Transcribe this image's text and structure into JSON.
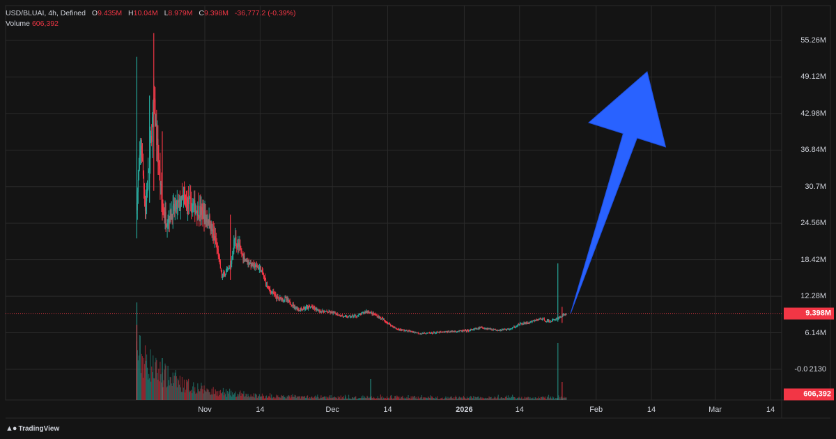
{
  "header": {
    "symbol": "USD/BLUAI, 4h, Defined",
    "open_label": "O",
    "open": "9.435M",
    "high_label": "H",
    "high": "10.04M",
    "low_label": "L",
    "low": "8.979M",
    "close_label": "C",
    "close": "9.398M",
    "change": "-36,777.2 (-0.39%)",
    "volume_label": "Volume",
    "volume": "606,392"
  },
  "branding": {
    "logo_text": "TradingView",
    "logo_icon": "tradingview-logo-icon"
  },
  "price_badge": "9.398M",
  "volume_badge": "606,392",
  "colors": {
    "background": "#141414",
    "grid": "#2a2a2a",
    "up": "#26a69a",
    "down": "#f23645",
    "arrow": "#2962ff"
  },
  "chart_data": {
    "type": "candlestick",
    "title": "USD/BLUAI, 4h, Defined",
    "y_axis": {
      "ticks": [
        "55.26M",
        "49.12M",
        "42.98M",
        "36.84M",
        "30.7M",
        "24.56M",
        "18.42M",
        "12.28M",
        "6.14M",
        "-0.0 2130"
      ],
      "tick_values": [
        55.26,
        49.12,
        42.98,
        36.84,
        30.7,
        24.56,
        18.42,
        12.28,
        6.14,
        0
      ],
      "range": [
        -1.5,
        57.5
      ],
      "scale": "linear",
      "unit": "M"
    },
    "x_axis": {
      "ticks": [
        "Nov",
        "14",
        "Dec",
        "14",
        "2026",
        "14",
        "Feb",
        "14",
        "Mar",
        "14"
      ],
      "tick_dates": [
        "2025-11-01",
        "2025-11-14",
        "2025-12-01",
        "2025-12-14",
        "2026-01-01",
        "2026-01-14",
        "2026-02-01",
        "2026-02-14",
        "2026-03-01",
        "2026-03-14"
      ],
      "range": [
        "2025-10-13",
        "2026-03-15"
      ]
    },
    "current_price": 9.398,
    "last_volume": 606392,
    "series_points": [
      [
        "2025-10-16",
        28.0
      ],
      [
        "2025-10-17",
        38.0
      ],
      [
        "2025-10-18",
        27.0
      ],
      [
        "2025-10-19",
        35.0
      ],
      [
        "2025-10-20",
        45.0
      ],
      [
        "2025-10-21",
        36.0
      ],
      [
        "2025-10-22",
        27.0
      ],
      [
        "2025-10-23",
        25.0
      ],
      [
        "2025-10-25",
        27.0
      ],
      [
        "2025-10-27",
        28.5
      ],
      [
        "2025-10-29",
        27.5
      ],
      [
        "2025-10-31",
        26.5
      ],
      [
        "2025-11-02",
        25.0
      ],
      [
        "2025-11-04",
        20.0
      ],
      [
        "2025-11-05",
        15.5
      ],
      [
        "2025-11-07",
        17.0
      ],
      [
        "2025-11-08",
        22.0
      ],
      [
        "2025-11-10",
        19.0
      ],
      [
        "2025-11-12",
        17.5
      ],
      [
        "2025-11-14",
        17.0
      ],
      [
        "2025-11-16",
        13.5
      ],
      [
        "2025-11-18",
        12.0
      ],
      [
        "2025-11-20",
        11.8
      ],
      [
        "2025-11-23",
        10.0
      ],
      [
        "2025-11-26",
        10.5
      ],
      [
        "2025-11-28",
        9.8
      ],
      [
        "2025-12-01",
        9.5
      ],
      [
        "2025-12-04",
        8.8
      ],
      [
        "2025-12-07",
        9.0
      ],
      [
        "2025-12-09",
        9.8
      ],
      [
        "2025-12-11",
        9.2
      ],
      [
        "2025-12-13",
        8.3
      ],
      [
        "2025-12-16",
        6.8
      ],
      [
        "2025-12-19",
        6.4
      ],
      [
        "2025-12-22",
        6.0
      ],
      [
        "2025-12-26",
        6.2
      ],
      [
        "2025-12-30",
        6.4
      ],
      [
        "2026-01-02",
        6.5
      ],
      [
        "2026-01-05",
        7.0
      ],
      [
        "2026-01-09",
        6.6
      ],
      [
        "2026-01-12",
        6.8
      ],
      [
        "2026-01-14",
        7.6
      ],
      [
        "2026-01-16",
        7.8
      ],
      [
        "2026-01-19",
        8.5
      ],
      [
        "2026-01-21",
        8.0
      ],
      [
        "2026-01-23",
        8.6
      ],
      [
        "2026-01-24",
        9.0
      ],
      [
        "2026-01-25",
        9.398
      ]
    ],
    "volume_peak_date": "2025-10-16",
    "annotation": {
      "type": "arrow",
      "from": [
        "2026-01-26",
        9.4
      ],
      "to": [
        "2026-02-13",
        50.0
      ],
      "color": "#2962ff"
    }
  }
}
